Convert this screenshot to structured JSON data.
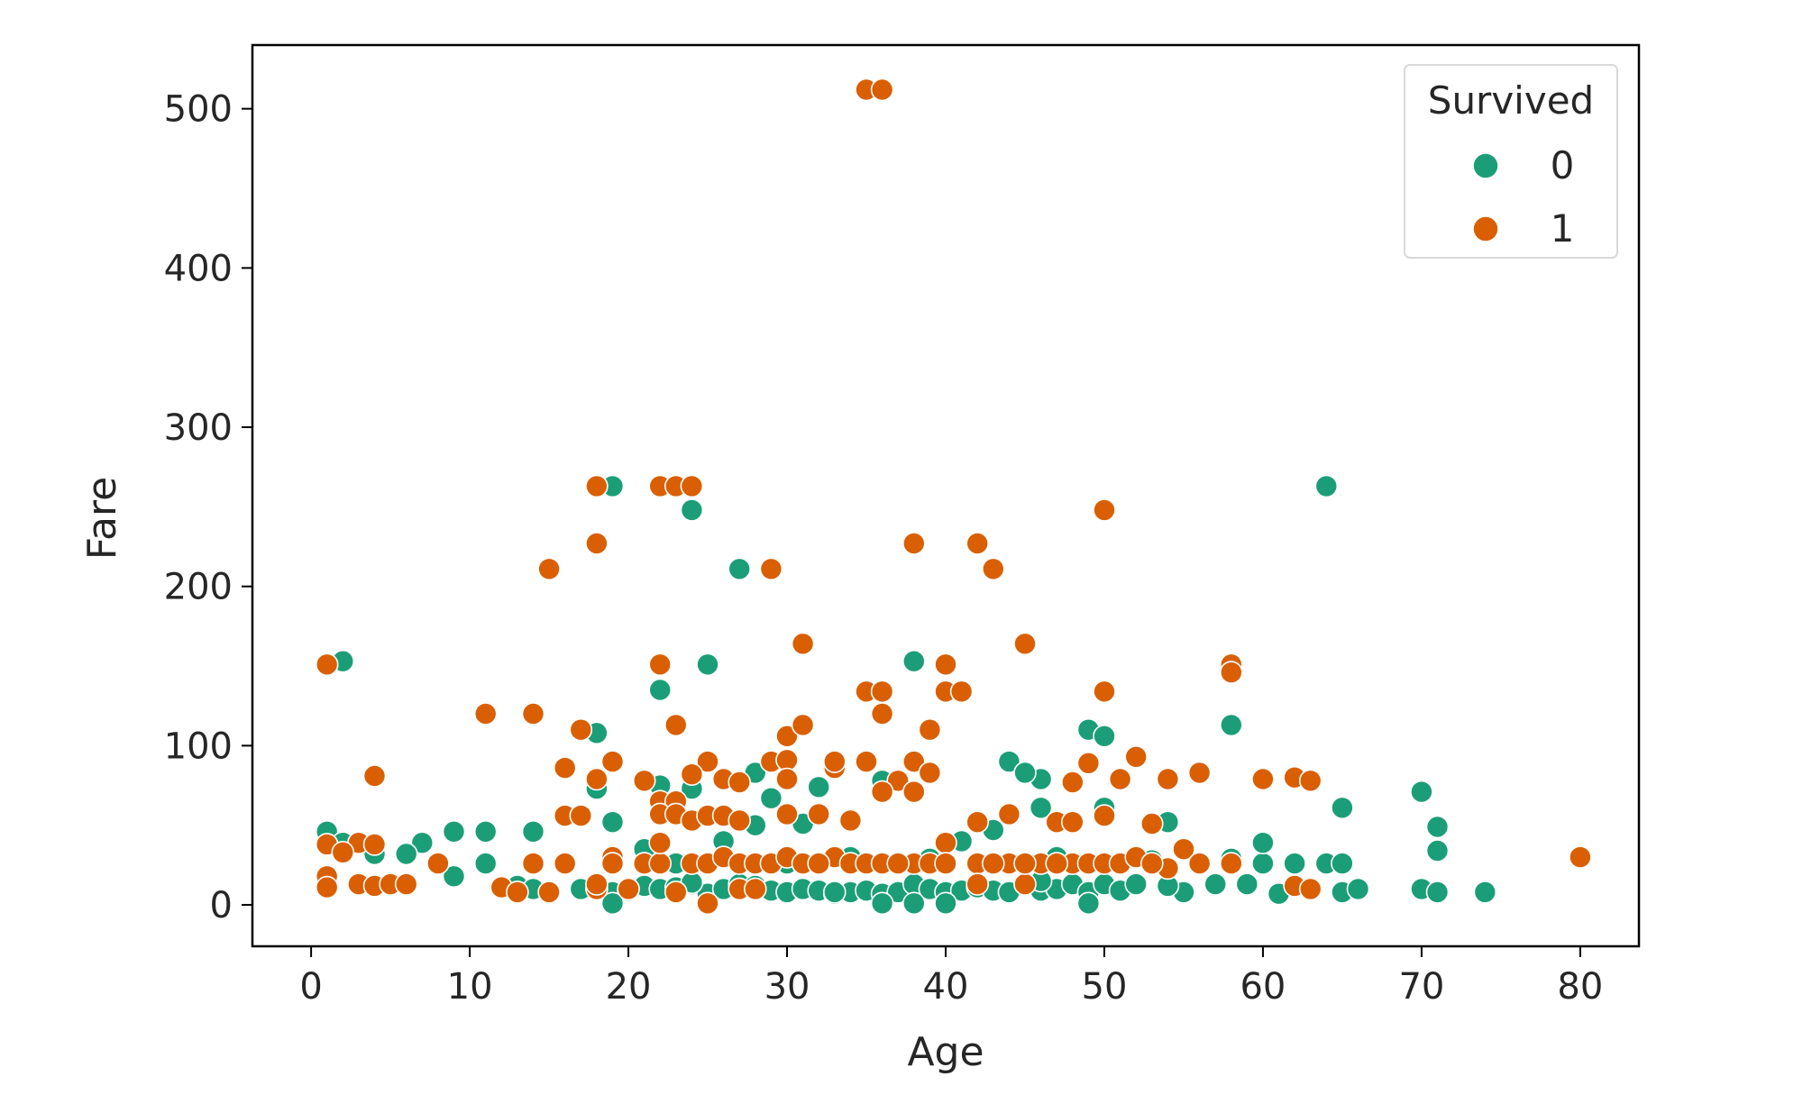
{
  "chart_data": {
    "type": "scatter",
    "title": "",
    "xlabel": "Age",
    "ylabel": "Fare",
    "xlim": [
      -3.7,
      83.7
    ],
    "ylim": [
      -26,
      540
    ],
    "xticks": [
      0,
      10,
      20,
      30,
      40,
      50,
      60,
      70,
      80
    ],
    "yticks": [
      0,
      100,
      200,
      300,
      400,
      500
    ],
    "grid": false,
    "legend": {
      "title": "Survived",
      "position": "top-right"
    },
    "series": [
      {
        "name": "0",
        "color": "#1b9e77",
        "points": [
          [
            2,
            153
          ],
          [
            19,
            263
          ],
          [
            24,
            248
          ],
          [
            27,
            211
          ],
          [
            64,
            263
          ],
          [
            25,
            151
          ],
          [
            22,
            135
          ],
          [
            38,
            153
          ],
          [
            18,
            108
          ],
          [
            49,
            110
          ],
          [
            50,
            106
          ],
          [
            58,
            113
          ],
          [
            32,
            74
          ],
          [
            24,
            73
          ],
          [
            36,
            78
          ],
          [
            44,
            90
          ],
          [
            46,
            79
          ],
          [
            45,
            83
          ],
          [
            28,
            83
          ],
          [
            29,
            67
          ],
          [
            31,
            51
          ],
          [
            19,
            52
          ],
          [
            70,
            71
          ],
          [
            71,
            49
          ],
          [
            71,
            34
          ],
          [
            65,
            61
          ],
          [
            50,
            61
          ],
          [
            54,
            52
          ],
          [
            46,
            61
          ],
          [
            1,
            46
          ],
          [
            14,
            46
          ],
          [
            9,
            46
          ],
          [
            11,
            46
          ],
          [
            7,
            39
          ],
          [
            2,
            39
          ],
          [
            4,
            32
          ],
          [
            6,
            32
          ],
          [
            8,
            26
          ],
          [
            9,
            18
          ],
          [
            11,
            26
          ],
          [
            13,
            12
          ],
          [
            16,
            26
          ],
          [
            19,
            8
          ],
          [
            20,
            9
          ],
          [
            21,
            12
          ],
          [
            22,
            10
          ],
          [
            23,
            11
          ],
          [
            24,
            13
          ],
          [
            25,
            7
          ],
          [
            26,
            10
          ],
          [
            27,
            13
          ],
          [
            28,
            12
          ],
          [
            29,
            9
          ],
          [
            30,
            8
          ],
          [
            31,
            10
          ],
          [
            32,
            9
          ],
          [
            33,
            7
          ],
          [
            34,
            8
          ],
          [
            35,
            9
          ],
          [
            36,
            7
          ],
          [
            37,
            8
          ],
          [
            38,
            13
          ],
          [
            39,
            10
          ],
          [
            40,
            8
          ],
          [
            41,
            9
          ],
          [
            42,
            11
          ],
          [
            43,
            9
          ],
          [
            44,
            8
          ],
          [
            45,
            13
          ],
          [
            46,
            9
          ],
          [
            47,
            10
          ],
          [
            48,
            13
          ],
          [
            49,
            8
          ],
          [
            50,
            13
          ],
          [
            51,
            9
          ],
          [
            52,
            13
          ],
          [
            53,
            28
          ],
          [
            55,
            8
          ],
          [
            56,
            26
          ],
          [
            57,
            13
          ],
          [
            58,
            29
          ],
          [
            59,
            13
          ],
          [
            60,
            26
          ],
          [
            60,
            39
          ],
          [
            61,
            7
          ],
          [
            62,
            26
          ],
          [
            63,
            10
          ],
          [
            64,
            26
          ],
          [
            65,
            26
          ],
          [
            65,
            8
          ],
          [
            66,
            10
          ],
          [
            70,
            10
          ],
          [
            71,
            8
          ],
          [
            74,
            8
          ],
          [
            19,
            1
          ],
          [
            24,
            14
          ],
          [
            36,
            1
          ],
          [
            38,
            1
          ],
          [
            40,
            1
          ],
          [
            49,
            1
          ],
          [
            30,
            26
          ],
          [
            35,
            26
          ],
          [
            40,
            26
          ],
          [
            45,
            26
          ],
          [
            43,
            47
          ],
          [
            41,
            40
          ],
          [
            21,
            35
          ],
          [
            26,
            40
          ],
          [
            22,
            75
          ],
          [
            18,
            73
          ],
          [
            34,
            30
          ],
          [
            37,
            27
          ],
          [
            47,
            30
          ],
          [
            54,
            12
          ],
          [
            17,
            10
          ],
          [
            15,
            8
          ],
          [
            14,
            10
          ],
          [
            23,
            26
          ],
          [
            28,
            50
          ],
          [
            33,
            8
          ],
          [
            48,
            26
          ],
          [
            42,
            26
          ],
          [
            56,
            26
          ],
          [
            39,
            29
          ],
          [
            29,
            26
          ],
          [
            25,
            26
          ],
          [
            21,
            26
          ],
          [
            31,
            26
          ],
          [
            36,
            26
          ],
          [
            46,
            15
          ]
        ]
      },
      {
        "name": "1",
        "color": "#d95f02",
        "points": [
          [
            35,
            512
          ],
          [
            36,
            512
          ],
          [
            18,
            263
          ],
          [
            22,
            263
          ],
          [
            23,
            263
          ],
          [
            24,
            263
          ],
          [
            50,
            248
          ],
          [
            18,
            227
          ],
          [
            38,
            227
          ],
          [
            42,
            227
          ],
          [
            15,
            211
          ],
          [
            29,
            211
          ],
          [
            43,
            211
          ],
          [
            31,
            164
          ],
          [
            45,
            164
          ],
          [
            1,
            151
          ],
          [
            22,
            151
          ],
          [
            40,
            151
          ],
          [
            58,
            151
          ],
          [
            58,
            146
          ],
          [
            35,
            134
          ],
          [
            36,
            134
          ],
          [
            40,
            134
          ],
          [
            41,
            134
          ],
          [
            50,
            134
          ],
          [
            36,
            120
          ],
          [
            11,
            120
          ],
          [
            14,
            120
          ],
          [
            17,
            110
          ],
          [
            23,
            113
          ],
          [
            30,
            106
          ],
          [
            31,
            113
          ],
          [
            39,
            110
          ],
          [
            25,
            90
          ],
          [
            29,
            90
          ],
          [
            33,
            86
          ],
          [
            35,
            90
          ],
          [
            38,
            90
          ],
          [
            39,
            83
          ],
          [
            30,
            91
          ],
          [
            52,
            93
          ],
          [
            49,
            89
          ],
          [
            4,
            81
          ],
          [
            16,
            86
          ],
          [
            18,
            79
          ],
          [
            19,
            90
          ],
          [
            21,
            78
          ],
          [
            22,
            65
          ],
          [
            23,
            65
          ],
          [
            24,
            82
          ],
          [
            26,
            79
          ],
          [
            27,
            77
          ],
          [
            30,
            79
          ],
          [
            33,
            90
          ],
          [
            37,
            78
          ],
          [
            48,
            77
          ],
          [
            51,
            79
          ],
          [
            54,
            79
          ],
          [
            56,
            83
          ],
          [
            60,
            79
          ],
          [
            62,
            80
          ],
          [
            63,
            78
          ],
          [
            16,
            56
          ],
          [
            17,
            56
          ],
          [
            22,
            57
          ],
          [
            23,
            57
          ],
          [
            24,
            53
          ],
          [
            25,
            56
          ],
          [
            26,
            56
          ],
          [
            27,
            53
          ],
          [
            30,
            57
          ],
          [
            32,
            57
          ],
          [
            34,
            53
          ],
          [
            36,
            71
          ],
          [
            38,
            71
          ],
          [
            40,
            39
          ],
          [
            42,
            52
          ],
          [
            44,
            57
          ],
          [
            47,
            52
          ],
          [
            48,
            52
          ],
          [
            50,
            56
          ],
          [
            53,
            51
          ],
          [
            55,
            35
          ],
          [
            1,
            38
          ],
          [
            3,
            39
          ],
          [
            4,
            38
          ],
          [
            2,
            33
          ],
          [
            1,
            18
          ],
          [
            1,
            11
          ],
          [
            3,
            13
          ],
          [
            4,
            12
          ],
          [
            5,
            13
          ],
          [
            6,
            13
          ],
          [
            8,
            26
          ],
          [
            12,
            11
          ],
          [
            13,
            8
          ],
          [
            14,
            26
          ],
          [
            15,
            8
          ],
          [
            16,
            26
          ],
          [
            18,
            10
          ],
          [
            19,
            30
          ],
          [
            21,
            26
          ],
          [
            22,
            26
          ],
          [
            22,
            39
          ],
          [
            24,
            26
          ],
          [
            25,
            26
          ],
          [
            26,
            30
          ],
          [
            27,
            26
          ],
          [
            28,
            26
          ],
          [
            29,
            26
          ],
          [
            30,
            30
          ],
          [
            31,
            26
          ],
          [
            32,
            26
          ],
          [
            33,
            30
          ],
          [
            34,
            26
          ],
          [
            35,
            26
          ],
          [
            36,
            26
          ],
          [
            38,
            26
          ],
          [
            39,
            26
          ],
          [
            40,
            26
          ],
          [
            42,
            26
          ],
          [
            44,
            26
          ],
          [
            45,
            13
          ],
          [
            48,
            26
          ],
          [
            49,
            26
          ],
          [
            50,
            26
          ],
          [
            51,
            26
          ],
          [
            52,
            30
          ],
          [
            54,
            23
          ],
          [
            56,
            26
          ],
          [
            62,
            12
          ],
          [
            63,
            10
          ],
          [
            80,
            30
          ],
          [
            25,
            1
          ],
          [
            19,
            26
          ],
          [
            20,
            10
          ],
          [
            32,
            26
          ],
          [
            37,
            26
          ],
          [
            43,
            26
          ],
          [
            46,
            26
          ],
          [
            47,
            26
          ],
          [
            42,
            13
          ],
          [
            45,
            26
          ],
          [
            58,
            26
          ],
          [
            53,
            26
          ],
          [
            27,
            10
          ],
          [
            18,
            13
          ],
          [
            23,
            8
          ],
          [
            28,
            10
          ]
        ]
      }
    ]
  }
}
